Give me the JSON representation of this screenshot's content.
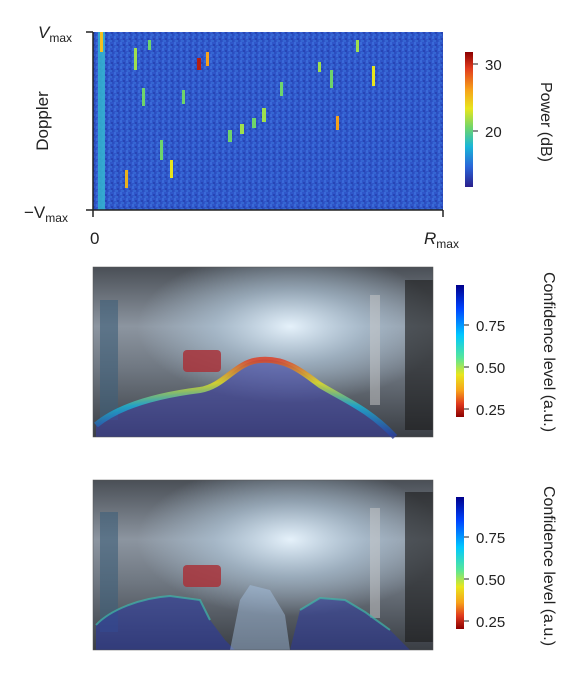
{
  "panel_top": {
    "ylabel": "Doppler",
    "y_top_label": "V",
    "y_top_sub": "max",
    "y_bottom_label": "−V",
    "y_bottom_sub": "max",
    "x_start_label": "0",
    "x_end_label": "R",
    "x_end_sub": "max",
    "colorbar": {
      "title": "Power (dB)",
      "ticks": [
        "30",
        "20"
      ],
      "colors": [
        "#8b0000",
        "#e03a1e",
        "#f7a21a",
        "#e8e61d",
        "#6fd56b",
        "#19b6d8",
        "#2a65d8",
        "#2a1f8c"
      ]
    }
  },
  "panel_middle": {
    "colorbar": {
      "title": "Confidence level (a.u.)",
      "ticks": [
        "0.75",
        "0.50",
        "0.25"
      ],
      "colors": [
        "#00008b",
        "#0044ff",
        "#00c8ff",
        "#55e69b",
        "#e8e61d",
        "#f7a21a",
        "#e03a1e",
        "#8b0000"
      ]
    }
  },
  "panel_bottom": {
    "colorbar": {
      "title": "Confidence level (a.u.)",
      "ticks": [
        "0.75",
        "0.50",
        "0.25"
      ],
      "colors": [
        "#00008b",
        "#0044ff",
        "#00c8ff",
        "#55e69b",
        "#e8e61d",
        "#f7a21a",
        "#e03a1e",
        "#8b0000"
      ]
    }
  }
}
